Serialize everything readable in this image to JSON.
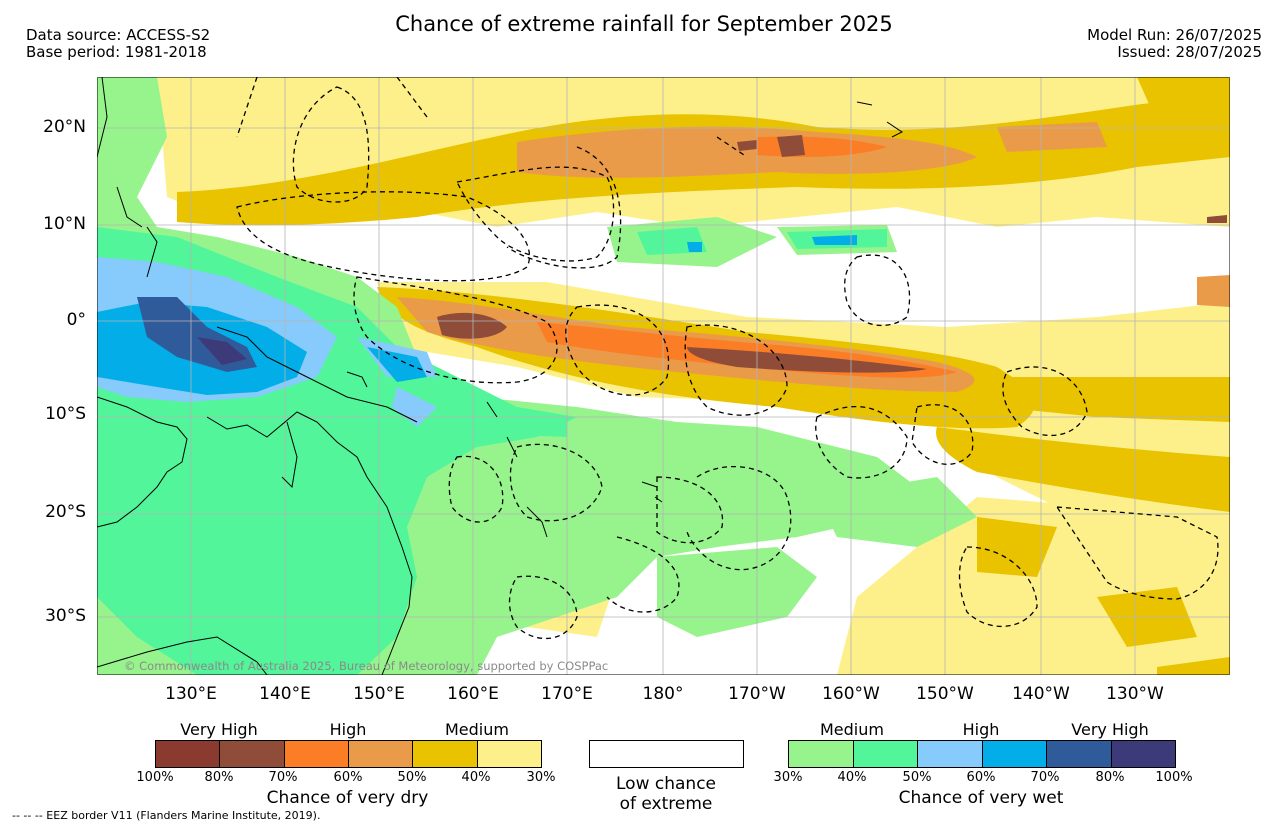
{
  "header": {
    "title": "Chance of extreme rainfall for September 2025",
    "source_line": "Data source: ACCESS-S2",
    "base_line": "Base period: 1981-2018",
    "model_run_line": "Model Run: 26/07/2025",
    "issued_line": "Issued: 28/07/2025"
  },
  "map": {
    "lat_labels": [
      "20°N",
      "10°N",
      "0°",
      "10°S",
      "20°S",
      "30°S"
    ],
    "lon_labels": [
      "130°E",
      "140°E",
      "150°E",
      "160°E",
      "170°E",
      "180°",
      "170°W",
      "160°W",
      "150°W",
      "140°W",
      "130°W"
    ],
    "credit": "© Commonwealth of Australia 2025, Bureau of Meteorology, supported by COSPPac",
    "background_color": "#ffffff",
    "coastline_color": "#000000"
  },
  "legend": {
    "dry": {
      "level_headers": [
        "Very High",
        "High",
        "Medium"
      ],
      "colors": [
        "#8b3a2f",
        "#8e4c39",
        "#fb7d26",
        "#ea9b49",
        "#e9c200",
        "#fdf08a"
      ],
      "ticks": [
        "100%",
        "80%",
        "70%",
        "60%",
        "50%",
        "40%",
        "30%"
      ],
      "label": "Chance of very dry"
    },
    "low": {
      "line1": "Low chance",
      "line2": "of extreme"
    },
    "wet": {
      "level_headers": [
        "Medium",
        "High",
        "Very High"
      ],
      "colors": [
        "#97f48c",
        "#52f59a",
        "#86cbfb",
        "#03aee8",
        "#305b9b",
        "#3d3a7a"
      ],
      "ticks": [
        "30%",
        "40%",
        "50%",
        "60%",
        "70%",
        "80%",
        "100%"
      ],
      "label": "Chance of very wet"
    }
  },
  "footer": {
    "eez_note": "--  --  -- EEZ border V11 (Flanders Marine Institute, 2019)."
  }
}
